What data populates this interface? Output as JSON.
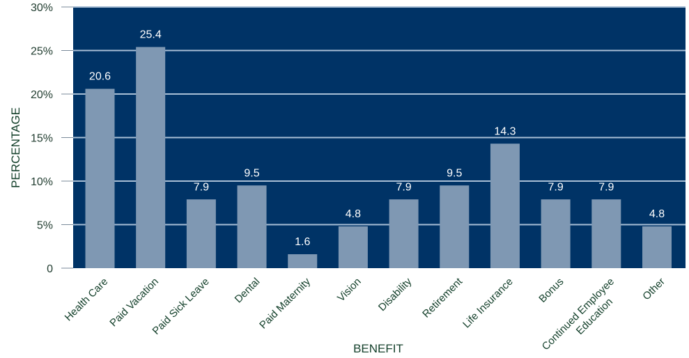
{
  "chart_data": {
    "type": "bar",
    "categories": [
      "Health Care",
      "Paid Vacation",
      "Paid Sick Leave",
      "Dental",
      "Paid Maternity",
      "Vision",
      "Disability",
      "Retirement",
      "Life Insurance",
      "Bonus",
      "Continued Employee Education",
      "Other"
    ],
    "values": [
      20.6,
      25.4,
      7.9,
      9.5,
      1.6,
      4.8,
      7.9,
      9.5,
      14.3,
      7.9,
      7.9,
      4.8
    ],
    "data_labels": [
      "20.6",
      "25.4",
      "7.9",
      "9.5",
      "1.6",
      "4.8",
      "7.9",
      "9.5",
      "14.3",
      "7.9",
      "7.9",
      "4.8"
    ],
    "title": "",
    "xlabel": "BENEFIT",
    "ylabel": "PERCENTAGE",
    "ylim": [
      0,
      30
    ],
    "yticks": [
      0,
      5,
      10,
      15,
      20,
      25,
      30
    ],
    "ytick_labels": [
      "0",
      "5%",
      "10%",
      "15%",
      "20%",
      "25%",
      "30%"
    ],
    "grid": true,
    "colors": {
      "plot_background": "#003366",
      "bar": "#7f98b3",
      "gridline": "#a9bfd6",
      "text": "#14402b"
    }
  }
}
